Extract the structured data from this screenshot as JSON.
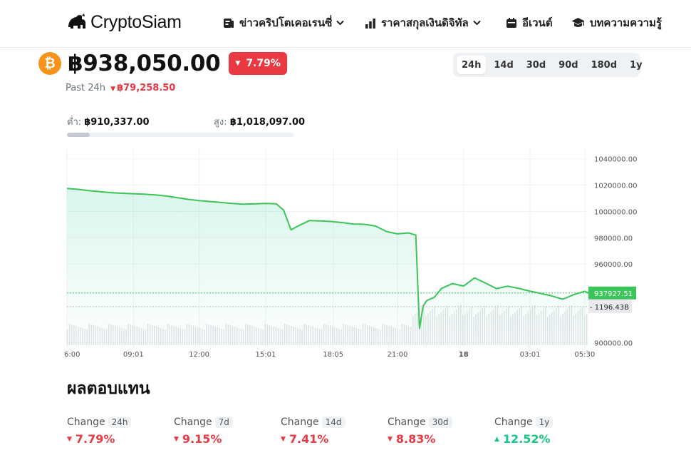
{
  "header": {
    "logo_text": "CryptoSiam",
    "nav": [
      {
        "label": "ข่าวคริปโตเคอเรนซี่",
        "icon": "news-icon",
        "dropdown": true
      },
      {
        "label": "ราคาสกุลเงินดิจิทัล",
        "icon": "bar-chart-icon",
        "dropdown": true
      },
      {
        "label": "อีเวนต์",
        "icon": "calendar-icon",
        "dropdown": false
      },
      {
        "label": "บทความความรู้",
        "icon": "graduation-cap-icon",
        "dropdown": false
      }
    ]
  },
  "coin": {
    "icon": "bitcoin-icon",
    "symbol_glyph": "₿"
  },
  "price": {
    "value": "฿938,050.00",
    "change_24h": "7.79%",
    "past_label": "Past 24h",
    "past_change": "฿79,258.50"
  },
  "range_tabs": [
    "24h",
    "14d",
    "30d",
    "90d",
    "180d",
    "1y"
  ],
  "active_range": "24h",
  "low_high": {
    "low_label": "ต่ำ:",
    "low_value": "฿910,337.00",
    "high_label": "สูง:",
    "high_value": "฿1,018,097.00",
    "position_fraction": 0.1
  },
  "returns": {
    "title": "ผลตอบแทน",
    "change_label": "Change",
    "items": [
      {
        "period": "24h",
        "value": "7.79%",
        "direction": "down"
      },
      {
        "period": "7d",
        "value": "9.15%",
        "direction": "down"
      },
      {
        "period": "14d",
        "value": "7.41%",
        "direction": "down"
      },
      {
        "period": "30d",
        "value": "8.83%",
        "direction": "down"
      },
      {
        "period": "1y",
        "value": "12.52%",
        "direction": "up"
      }
    ]
  },
  "colors": {
    "accent_green": "#16c784",
    "line": "#3bc45a",
    "negative": "#ea3943",
    "bitcoin": "#f7931a",
    "volume": "#d7dbe0"
  },
  "chart_data": {
    "type": "area",
    "x_ticks": [
      "6:00",
      "09:01",
      "12:00",
      "15:01",
      "18:05",
      "21:00",
      "18",
      "03:01",
      "05:30"
    ],
    "y_ticks": [
      "1040000.00",
      "1020000.00",
      "1000000.00",
      "980000.00",
      "960000.00",
      "900000.00"
    ],
    "ylim": [
      896000,
      1048000
    ],
    "current_price_label": "937927.51",
    "current_price": 937927.51,
    "volume_label": "1196.43B",
    "grid": true,
    "series": [
      {
        "x": [
          "06:00",
          "06:30",
          "07:00",
          "07:30",
          "08:00",
          "08:30",
          "09:00",
          "09:30",
          "10:00",
          "10:30",
          "11:00",
          "11:30",
          "12:00",
          "12:30",
          "13:00",
          "13:30",
          "14:00",
          "14:30",
          "15:00",
          "15:30",
          "15:50",
          "16:10",
          "16:30",
          "17:00",
          "17:30",
          "18:00",
          "18:30",
          "19:00",
          "19:30",
          "20:00",
          "20:30",
          "21:00",
          "21:30",
          "21:50",
          "22:00",
          "22:10",
          "22:20",
          "22:40",
          "23:00",
          "23:30",
          "00:00",
          "00:30",
          "01:00",
          "01:30",
          "02:00",
          "02:30",
          "03:00",
          "03:30",
          "04:00",
          "04:30",
          "05:00",
          "05:30",
          "05:40"
        ],
        "values": [
          1017500,
          1016800,
          1015800,
          1015000,
          1014300,
          1013800,
          1013500,
          1013100,
          1012600,
          1011800,
          1010500,
          1009200,
          1008200,
          1007500,
          1006800,
          1006100,
          1005500,
          1005700,
          1006100,
          1005800,
          1001000,
          986000,
          989000,
          993000,
          992800,
          992300,
          991500,
          990400,
          990200,
          988900,
          984700,
          982900,
          983600,
          982000,
          911000,
          928000,
          932200,
          934600,
          941400,
          945100,
          943200,
          949400,
          945400,
          941200,
          943100,
          941400,
          939400,
          937600,
          935700,
          933200,
          936600,
          939200,
          937927.51
        ]
      }
    ],
    "volume_range": [
      1050,
      1350
    ]
  }
}
